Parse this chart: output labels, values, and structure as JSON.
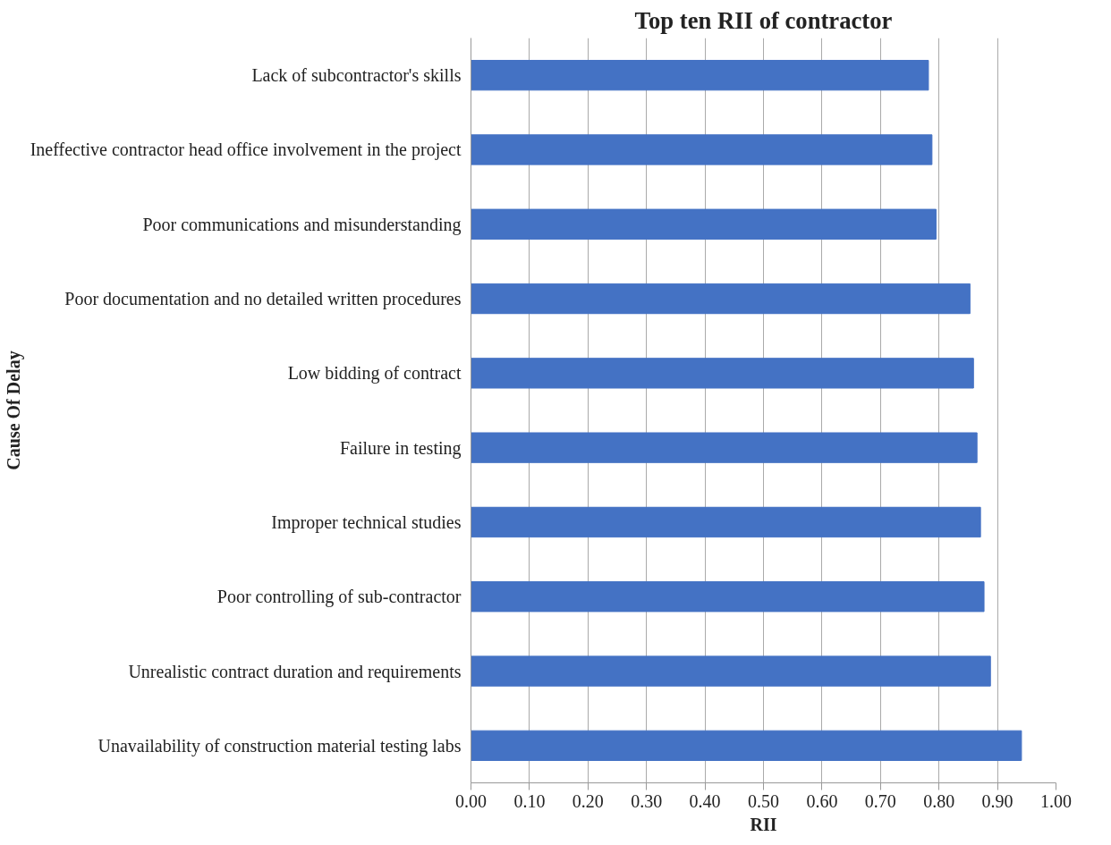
{
  "chart_data": {
    "type": "bar",
    "orientation": "horizontal",
    "title": "Top ten RII of contractor",
    "xlabel": "RII",
    "ylabel": "Cause Of Delay",
    "categories": [
      "Lack of subcontractor's skills",
      "Ineffective contractor head office involvement in the project",
      "Poor communications and misunderstanding",
      "Poor documentation and no detailed written procedures",
      "Low bidding of contract",
      "Failure in testing",
      "Improper technical studies",
      "Poor controlling of sub-contractor",
      "Unrealistic contract duration and requirements",
      "Unavailability of construction material testing labs"
    ],
    "values": [
      0.782,
      0.788,
      0.795,
      0.853,
      0.859,
      0.865,
      0.871,
      0.877,
      0.888,
      0.941
    ],
    "color": "#4472c4",
    "xlim": [
      0,
      1
    ],
    "xticks": [
      {
        "value": 0,
        "label": "0.00"
      },
      {
        "value": 0.1,
        "label": "0.10"
      },
      {
        "value": 0.2,
        "label": "0.20"
      },
      {
        "value": 0.3,
        "label": "0.30"
      },
      {
        "value": 0.4,
        "label": "0.40"
      },
      {
        "value": 0.5,
        "label": "0.50"
      },
      {
        "value": 0.6,
        "label": "0.60"
      },
      {
        "value": 0.7,
        "label": "0.70"
      },
      {
        "value": 0.8,
        "label": "0.80"
      },
      {
        "value": 0.9,
        "label": "0.90"
      },
      {
        "value": 1,
        "label": "1.00"
      }
    ],
    "grid": "x"
  }
}
